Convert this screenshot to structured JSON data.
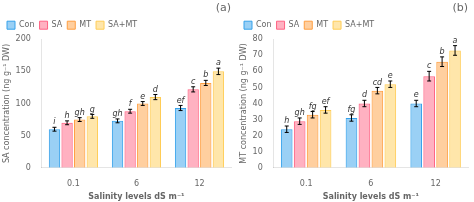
{
  "chart_data": [
    {
      "type": "bar",
      "title": "(a)",
      "xlabel": "Salinity levels dS m⁻¹",
      "ylabel": "SA concentration (ng g⁻¹ DW)",
      "categories": [
        "0.1",
        "6",
        "12"
      ],
      "series": [
        {
          "name": "Con",
          "values": [
            60,
            73,
            93
          ],
          "errors": [
            3,
            3,
            4
          ],
          "labels": [
            "i",
            "gh",
            "ef"
          ]
        },
        {
          "name": "SA",
          "values": [
            70,
            88,
            122
          ],
          "errors": [
            3,
            3,
            4
          ],
          "labels": [
            "h",
            "f",
            "c"
          ]
        },
        {
          "name": "MT",
          "values": [
            75,
            100,
            132
          ],
          "errors": [
            3,
            3,
            4
          ],
          "labels": [
            "gh",
            "e",
            "b"
          ]
        },
        {
          "name": "SA+MT",
          "values": [
            80,
            110,
            150
          ],
          "errors": [
            3,
            4,
            5
          ],
          "labels": [
            "g",
            "d",
            "a"
          ]
        }
      ],
      "ylim": [
        0,
        200
      ],
      "yticks": [
        0,
        50,
        100,
        150,
        200
      ],
      "grid": false,
      "legend": "upper left"
    },
    {
      "type": "bar",
      "title": "(b)",
      "xlabel": "Salinity levels dS m⁻¹",
      "ylabel": "MT concentration (ng g⁻¹ DW)",
      "categories": [
        "0.1",
        "6",
        "12"
      ],
      "series": [
        {
          "name": "Con",
          "values": [
            24,
            31,
            40
          ],
          "errors": [
            2,
            2,
            2
          ],
          "labels": [
            "h",
            "fg",
            "e"
          ]
        },
        {
          "name": "SA",
          "values": [
            29,
            40,
            57
          ],
          "errors": [
            2,
            2,
            3
          ],
          "labels": [
            "gh",
            "d",
            "c"
          ]
        },
        {
          "name": "MT",
          "values": [
            33,
            48,
            66
          ],
          "errors": [
            2,
            2,
            3
          ],
          "labels": [
            "fg",
            "cd",
            "b"
          ]
        },
        {
          "name": "SA+MT",
          "values": [
            36,
            52,
            73
          ],
          "errors": [
            2,
            2,
            3
          ],
          "labels": [
            "ef",
            "e",
            "a"
          ]
        }
      ],
      "ylim": [
        0,
        80
      ],
      "yticks": [
        0,
        10,
        20,
        30,
        40,
        50,
        60,
        70,
        80
      ],
      "grid": false,
      "legend": "upper left"
    }
  ]
}
